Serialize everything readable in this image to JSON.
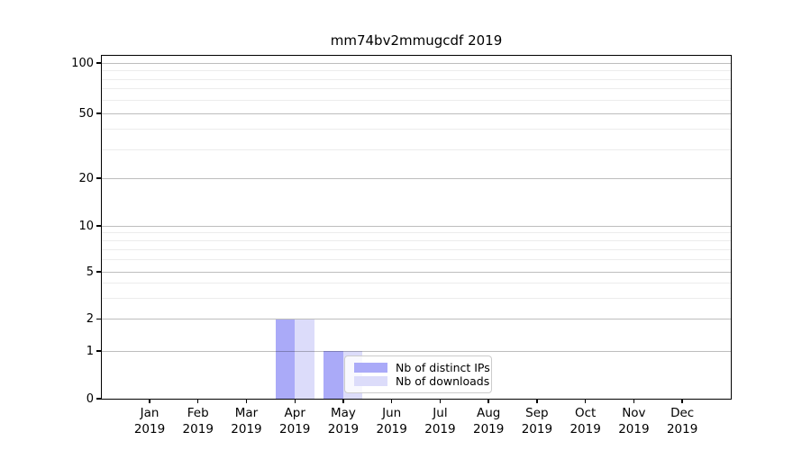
{
  "figure": {
    "title": "mm74bv2mmugcdf 2019"
  },
  "chart_data": {
    "type": "bar",
    "title": "mm74bv2mmugcdf 2019",
    "categories": [
      "Jan",
      "Feb",
      "Mar",
      "Apr",
      "May",
      "Jun",
      "Jul",
      "Aug",
      "Sep",
      "Oct",
      "Nov",
      "Dec"
    ],
    "x_tick_year": "2019",
    "series": [
      {
        "name": "Nb of distinct IPs",
        "color": "#aaaaf8",
        "values": [
          0,
          0,
          0,
          2,
          1,
          0,
          0,
          0,
          0,
          0,
          0,
          0
        ]
      },
      {
        "name": "Nb of downloads",
        "color": "#dcdcfa",
        "values": [
          0,
          0,
          0,
          2,
          1,
          0,
          0,
          0,
          0,
          0,
          0,
          0
        ]
      }
    ],
    "yaxis": {
      "scale": "symlog",
      "ticks": [
        0,
        1,
        2,
        5,
        10,
        20,
        50,
        100
      ],
      "range": [
        0,
        100
      ]
    },
    "xlabel": "",
    "ylabel": "",
    "grid": true,
    "legend": {
      "position": "inside-lower-middle",
      "entries": [
        "Nb of distinct IPs",
        "Nb of downloads"
      ]
    }
  }
}
